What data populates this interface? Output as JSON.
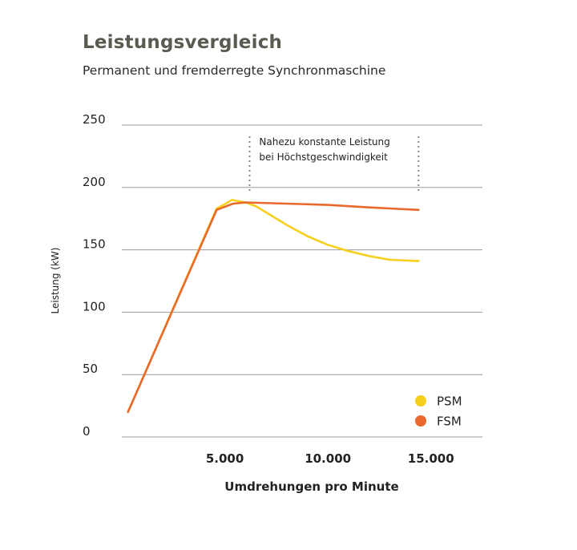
{
  "chart_data": {
    "type": "line",
    "title": "Leistungsvergleich",
    "subtitle": "Permanent und fremderregte Synchronmaschine",
    "xlabel": "Umdrehungen pro Minute",
    "ylabel": "Leistung (kW)",
    "xlim": [
      0,
      17500
    ],
    "ylim": [
      0,
      250
    ],
    "yticks": [
      0,
      50,
      100,
      150,
      200,
      250
    ],
    "ytick_labels": [
      "0",
      "50",
      "100",
      "150",
      "200",
      "250"
    ],
    "xticks": [
      5000,
      10000,
      15000
    ],
    "xtick_labels": [
      "5.000",
      "10.000",
      "15.000"
    ],
    "grid": "horizontal",
    "legend_position": "bottom-right",
    "annotation": {
      "lines": [
        "Nahezu konstante Leistung",
        "bei Höchstgeschwindigkeit"
      ],
      "x_range": [
        6200,
        14400
      ]
    },
    "series": [
      {
        "name": "PSM",
        "color": "#f7cf1d",
        "x": [
          300,
          4600,
          5350,
          6000,
          6500,
          7000,
          8000,
          9000,
          10000,
          11000,
          12000,
          13000,
          14400
        ],
        "values": [
          20,
          183,
          190,
          188,
          185,
          180,
          170,
          161,
          154,
          149,
          145,
          142,
          141
        ]
      },
      {
        "name": "FSM",
        "color": "#e9692c",
        "x": [
          300,
          4600,
          5400,
          6000,
          8000,
          10000,
          12000,
          14400
        ],
        "values": [
          20,
          182,
          187,
          188,
          187,
          186,
          184,
          182
        ]
      }
    ]
  }
}
